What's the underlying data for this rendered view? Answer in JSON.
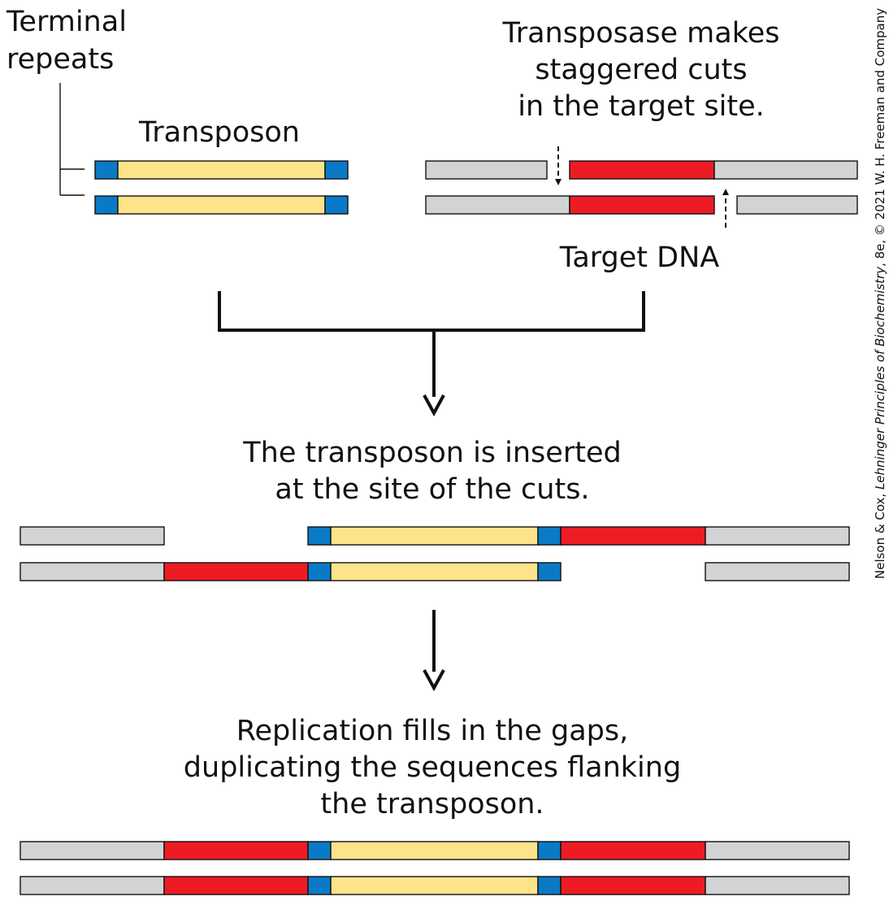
{
  "labels": {
    "terminal_repeats_1": "Terminal",
    "terminal_repeats_2": "repeats",
    "transposon": "Transposon",
    "transposase_1": "Transposase makes",
    "transposase_2": "staggered cuts",
    "transposase_3": "in the target site.",
    "target_dna": "Target DNA",
    "step2_1": "The transposon is inserted",
    "step2_2": "at the site of the cuts.",
    "step3_1": "Replication fills in the gaps,",
    "step3_2": "duplicating the sequences flanking",
    "step3_3": "the transposon."
  },
  "credit": {
    "part1": "Nelson & Cox, ",
    "part2": "Lehninger Principles of Biochemistry",
    "part3": ", 8e, © 2021 W. H. Freeman and Company"
  },
  "colors": {
    "terminal_repeat": "#0a7ac7",
    "transposon_body": "#fde38a",
    "target_site": "#ed1c24",
    "flanking_dna": "#d1d3d4",
    "outline": "#111111"
  }
}
